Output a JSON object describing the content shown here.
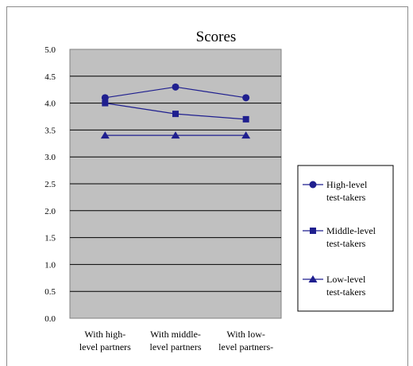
{
  "chart_data": {
    "type": "line",
    "title": "Scores",
    "categories": [
      [
        "With high-",
        "level partners"
      ],
      [
        "With middle-",
        "level partners"
      ],
      [
        "With low-",
        "level partners-"
      ]
    ],
    "y_ticks": [
      "0.0",
      "0.5",
      "1.0",
      "1.5",
      "2.0",
      "2.5",
      "3.0",
      "3.5",
      "4.0",
      "4.5",
      "5.0"
    ],
    "ylim": [
      0,
      5
    ],
    "grid": true,
    "legend_position": "right",
    "series": [
      {
        "name": [
          "High-level",
          "test-takers"
        ],
        "marker": "circle",
        "values": [
          4.1,
          4.3,
          4.1
        ]
      },
      {
        "name": [
          "Middle-level",
          "test-takers"
        ],
        "marker": "square",
        "values": [
          4.0,
          3.8,
          3.7
        ]
      },
      {
        "name": [
          "Low-level",
          "test-takers"
        ],
        "marker": "triangle",
        "values": [
          3.4,
          3.4,
          3.4
        ]
      }
    ],
    "colors": {
      "series": "#1f1f8f",
      "plot_bg": "#c0c0c0",
      "grid": "#000000"
    }
  }
}
